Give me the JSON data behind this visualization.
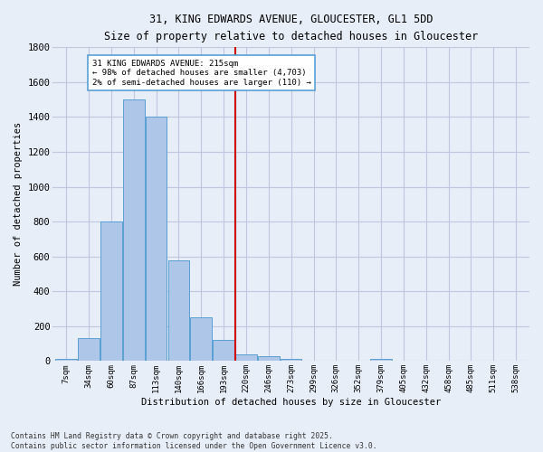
{
  "title_line1": "31, KING EDWARDS AVENUE, GLOUCESTER, GL1 5DD",
  "title_line2": "Size of property relative to detached houses in Gloucester",
  "xlabel": "Distribution of detached houses by size in Gloucester",
  "ylabel": "Number of detached properties",
  "categories": [
    "7sqm",
    "34sqm",
    "60sqm",
    "87sqm",
    "113sqm",
    "140sqm",
    "166sqm",
    "193sqm",
    "220sqm",
    "246sqm",
    "273sqm",
    "299sqm",
    "326sqm",
    "352sqm",
    "379sqm",
    "405sqm",
    "432sqm",
    "458sqm",
    "485sqm",
    "511sqm",
    "538sqm"
  ],
  "values": [
    10,
    130,
    800,
    1500,
    1400,
    580,
    250,
    120,
    40,
    30,
    15,
    0,
    0,
    0,
    15,
    0,
    0,
    0,
    0,
    0,
    0
  ],
  "bar_color": "#aec6e8",
  "bar_edge_color": "#5a9fd4",
  "vline_x_index": 8,
  "annotation_text": "31 KING EDWARDS AVENUE: 215sqm\n← 98% of detached houses are smaller (4,703)\n2% of semi-detached houses are larger (110) →",
  "annotation_box_color": "#ffffff",
  "annotation_box_edge": "#5a9fd4",
  "vline_color": "#cc0000",
  "background_color": "#e8eef8",
  "grid_color": "#c0c8e0",
  "ylim": [
    0,
    1800
  ],
  "yticks": [
    0,
    200,
    400,
    600,
    800,
    1000,
    1200,
    1400,
    1600,
    1800
  ],
  "footer_line1": "Contains HM Land Registry data © Crown copyright and database right 2025.",
  "footer_line2": "Contains public sector information licensed under the Open Government Licence v3.0."
}
